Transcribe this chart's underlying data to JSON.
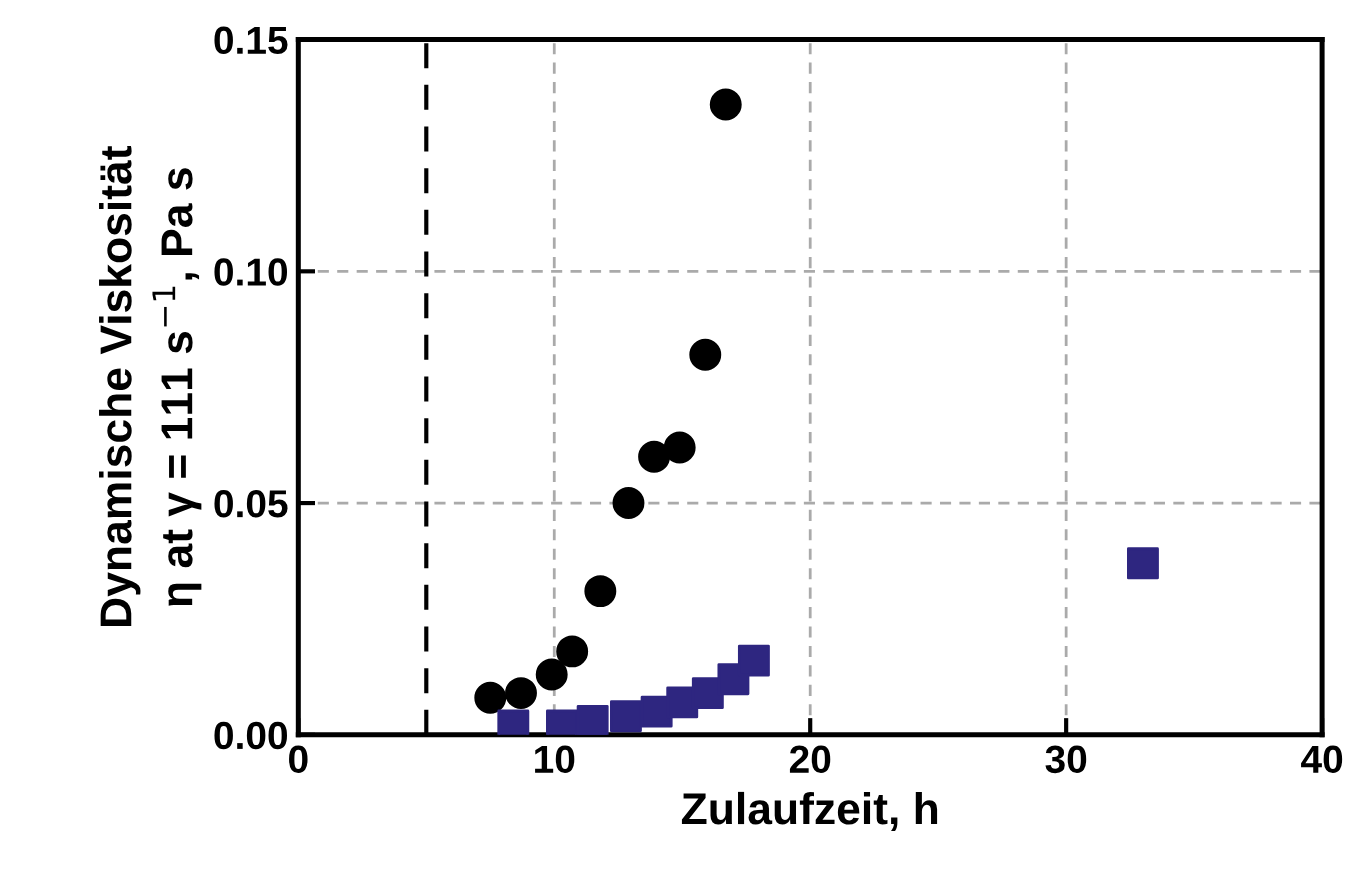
{
  "chart_data": {
    "type": "scatter",
    "xlabel": "Zulaufzeit, h",
    "ylabel": "Dynamische Viskosität\nη at γ = 111 s$^{−1}$, Pa s",
    "series": [
      {
        "color": "#000000",
        "marker": "circle",
        "x": [
          7.5,
          8.7,
          9.9,
          10.7,
          11.8,
          12.9,
          13.9,
          14.9,
          15.9,
          16.7
        ],
        "values": [
          0.008,
          0.009,
          0.013,
          0.018,
          0.031,
          0.05,
          0.06,
          0.062,
          0.082,
          0.136
        ]
      },
      {
        "color": "#2e2680",
        "marker": "square",
        "x": [
          8.4,
          10.3,
          11.5,
          12.8,
          14.0,
          15.0,
          16.0,
          17.0,
          17.8,
          33.0
        ],
        "values": [
          0.002,
          0.002,
          0.003,
          0.004,
          0.005,
          0.007,
          0.009,
          0.012,
          0.016,
          0.037
        ]
      }
    ],
    "ref_lines": [
      {
        "axis": "x",
        "value": 5,
        "color": "#000000",
        "line_style": "dashed"
      }
    ],
    "xlim": [
      0,
      40
    ],
    "xticks": [
      0,
      10,
      20,
      30,
      40
    ],
    "ylim": [
      0,
      0.15
    ],
    "yticks": [
      {
        "value": 0,
        "label": "0.00"
      },
      {
        "value": 0.05,
        "label": "0.05"
      },
      {
        "value": 0.1,
        "label": "0.10"
      },
      {
        "value": 0.15,
        "label": "0.15"
      }
    ],
    "grid": true,
    "legend": false
  }
}
